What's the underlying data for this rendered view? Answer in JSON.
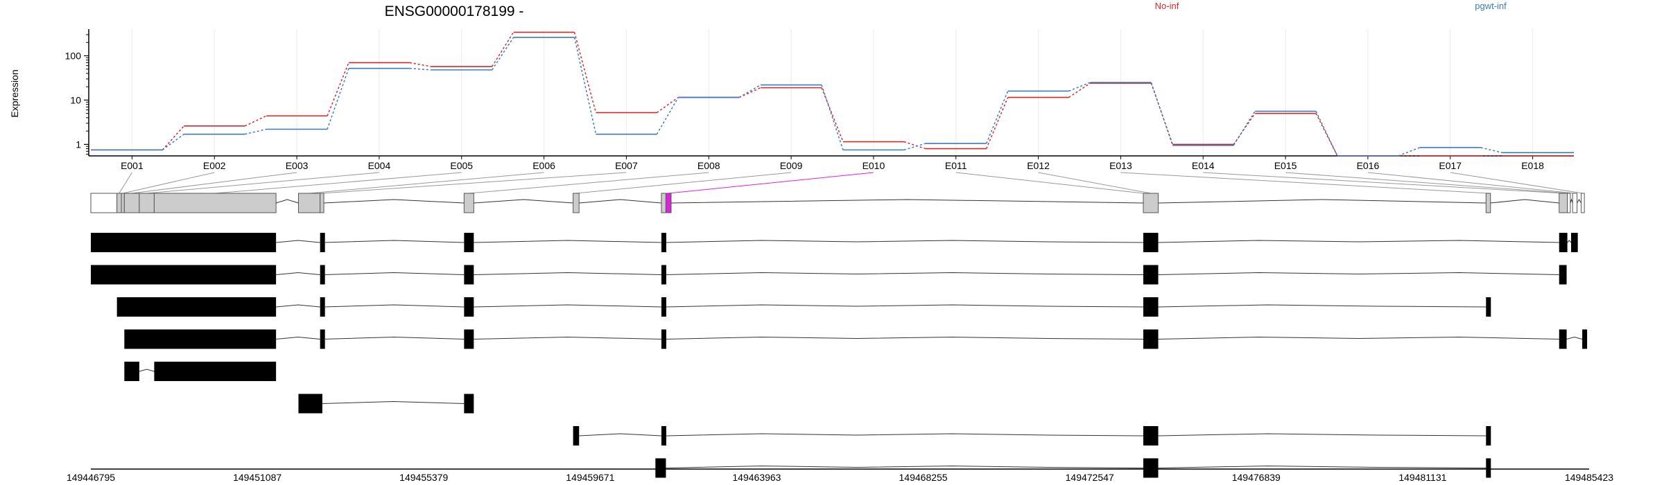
{
  "chart_data": {
    "type": "line",
    "title": "ENSG00000178199 -",
    "ylabel": "Expression",
    "y_scale": "log",
    "ylim": [
      0.55,
      400
    ],
    "y_ticks": [
      {
        "value": 1,
        "label": "1"
      },
      {
        "value": 10,
        "label": "10"
      },
      {
        "value": 100,
        "label": "100"
      }
    ],
    "categories": [
      "E001",
      "E002",
      "E003",
      "E004",
      "E005",
      "E006",
      "E007",
      "E008",
      "E009",
      "E010",
      "E011",
      "E012",
      "E013",
      "E014",
      "E015",
      "E016",
      "E017",
      "E018"
    ],
    "legend_position": "top",
    "series": [
      {
        "name": "No-inf",
        "color": "#d62728",
        "values": [
          0.75,
          2.6,
          4.4,
          70,
          57,
          340,
          5.2,
          11.5,
          19,
          1.15,
          0.8,
          11.5,
          24,
          1.0,
          5.0,
          0.55,
          0.55,
          0.55
        ]
      },
      {
        "name": "pgwt-inf",
        "color": "#3b7bbd",
        "values": [
          0.75,
          1.7,
          2.2,
          52,
          48,
          260,
          1.7,
          11.5,
          22,
          0.75,
          1.05,
          16,
          25,
          0.95,
          5.6,
          0.55,
          0.85,
          0.65
        ]
      }
    ],
    "gene_model": {
      "genomic_range": [
        149446795,
        149485423
      ],
      "axis_ticks": [
        149446795,
        149451087,
        149455379,
        149459671,
        149463963,
        149468255,
        149472547,
        149476839,
        149481131,
        149485423
      ],
      "highlight_color": "#e020e0",
      "bins": [
        {
          "start": 149446795,
          "end": 149447468,
          "kind": "white"
        },
        {
          "start": 149447468,
          "end": 149447582,
          "kind": "exon"
        },
        {
          "start": 149447582,
          "end": 149447659,
          "kind": "exon"
        },
        {
          "start": 149447659,
          "end": 149448044,
          "kind": "exon"
        },
        {
          "start": 149448044,
          "end": 149448429,
          "kind": "exon"
        },
        {
          "start": 149448429,
          "end": 149451570,
          "kind": "exon"
        },
        {
          "start": 149452148,
          "end": 149452706,
          "kind": "exon"
        },
        {
          "start": 149452706,
          "end": 149452802,
          "kind": "exon"
        },
        {
          "start": 149456418,
          "end": 149456668,
          "kind": "exon"
        },
        {
          "start": 149459229,
          "end": 149459383,
          "kind": "exon"
        },
        {
          "start": 149461505,
          "end": 149461621,
          "kind": "exon"
        },
        {
          "start": 149461621,
          "end": 149461756,
          "kind": "highlight"
        },
        {
          "start": 149473929,
          "end": 149474314,
          "kind": "exon"
        },
        {
          "start": 149482765,
          "end": 149482880,
          "kind": "exon"
        },
        {
          "start": 149484650,
          "end": 149484862,
          "kind": "exon"
        },
        {
          "start": 149484862,
          "end": 149484938,
          "kind": "white"
        },
        {
          "start": 149484997,
          "end": 149485112,
          "kind": "white"
        },
        {
          "start": 149485219,
          "end": 149485300,
          "kind": "white"
        }
      ],
      "label_connectors": [
        149447525,
        149447620,
        149447850,
        149448236,
        149449999,
        149452427,
        149452754,
        149456543,
        149459306,
        149461688,
        149473929,
        149474121,
        149482822,
        149484756,
        149484900,
        149485054,
        149485259
      ],
      "transcripts": [
        {
          "exons": [
            [
              149446795,
              149451570
            ],
            [
              149452706,
              149452802
            ],
            [
              149456418,
              149456668
            ],
            [
              149461505,
              149461621
            ],
            [
              149473929,
              149474314
            ],
            [
              149484650,
              149484862
            ],
            [
              149484958,
              149485131
            ]
          ]
        },
        {
          "exons": [
            [
              149446795,
              149451570
            ],
            [
              149452706,
              149452802
            ],
            [
              149456418,
              149456668
            ],
            [
              149461505,
              149461621
            ],
            [
              149473929,
              149474314
            ],
            [
              149484650,
              149484843
            ]
          ]
        },
        {
          "exons": [
            [
              149447468,
              149451570
            ],
            [
              149452706,
              149452802
            ],
            [
              149456418,
              149456668
            ],
            [
              149461505,
              149461621
            ],
            [
              149473929,
              149474314
            ],
            [
              149482765,
              149482880
            ]
          ]
        },
        {
          "exons": [
            [
              149447659,
              149451570
            ],
            [
              149452706,
              149452802
            ],
            [
              149456418,
              149456668
            ],
            [
              149461505,
              149461621
            ],
            [
              149473929,
              149474314
            ],
            [
              149484650,
              149484843
            ],
            [
              149485246,
              149485300
            ]
          ]
        },
        {
          "exons": [
            [
              149447659,
              149448044
            ],
            [
              149448429,
              149451570
            ]
          ]
        },
        {
          "exons": [
            [
              149452148,
              149452764
            ],
            [
              149456418,
              149456668
            ]
          ]
        },
        {
          "exons": [
            [
              149459229,
              149459383
            ],
            [
              149461505,
              149461621
            ],
            [
              149473929,
              149474314
            ],
            [
              149482765,
              149482880
            ]
          ]
        },
        {
          "exons": [
            [
              149461351,
              149461621
            ],
            [
              149473929,
              149474314
            ],
            [
              149482765,
              149482880
            ]
          ]
        }
      ]
    }
  }
}
